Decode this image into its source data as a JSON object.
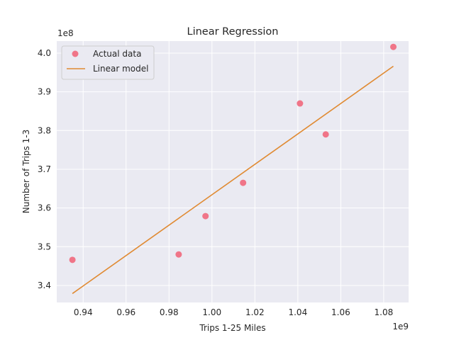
{
  "chart_data": {
    "type": "scatter",
    "title": "Linear Regression",
    "xlabel": "Trips 1-25 Miles",
    "ylabel": "Number of Trips 1-3",
    "x_offset_label": "1e9",
    "y_offset_label": "1e8",
    "xlim": [
      0.9277,
      1.0916
    ],
    "ylim": [
      3.356,
      4.031
    ],
    "x_ticks": [
      0.94,
      0.96,
      0.98,
      1.0,
      1.02,
      1.04,
      1.06,
      1.08
    ],
    "x_tick_labels": [
      "0.94",
      "0.96",
      "0.98",
      "1.00",
      "1.02",
      "1.04",
      "1.06",
      "1.08"
    ],
    "y_ticks": [
      3.4,
      3.5,
      3.6,
      3.7,
      3.8,
      3.9,
      4.0
    ],
    "y_tick_labels": [
      "3.4",
      "3.5",
      "3.6",
      "3.7",
      "3.8",
      "3.9",
      "4.0"
    ],
    "grid": true,
    "legend_position": "top-left",
    "background_color": "#eaeaf2",
    "series": [
      {
        "name": "Actual data",
        "kind": "scatter",
        "color": "#f07588",
        "x": [
          0.935,
          0.9845,
          0.997,
          1.0145,
          1.041,
          1.053,
          1.0845
        ],
        "y": [
          3.466,
          3.48,
          3.579,
          3.665,
          3.87,
          3.79,
          4.016
        ]
      },
      {
        "name": "Linear model",
        "kind": "line",
        "color": "#e08a32",
        "x": [
          0.935,
          1.0845
        ],
        "y": [
          3.379,
          3.966
        ]
      }
    ]
  }
}
